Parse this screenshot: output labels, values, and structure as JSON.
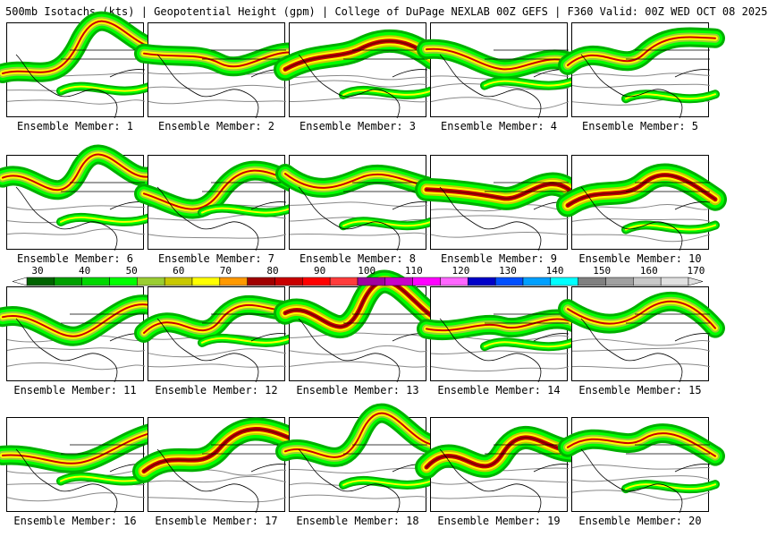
{
  "header": {
    "title": "500mb Isotachs (kts) | Geopotential Height (gpm) | College of DuPage NEXLAB   00Z GEFS | F360 Valid: 00Z WED OCT 08 2025"
  },
  "legend": {
    "ticks": [
      "30",
      "40",
      "50",
      "60",
      "70",
      "80",
      "90",
      "100",
      "110",
      "120",
      "130",
      "140",
      "150",
      "160",
      "170"
    ],
    "colors": [
      "#006400",
      "#00a000",
      "#00d800",
      "#00ff00",
      "#9acd32",
      "#c8c800",
      "#ffff00",
      "#ff9900",
      "#a00000",
      "#c80000",
      "#ff0000",
      "#ff3c3c",
      "#a000a0",
      "#c800c8",
      "#ff00ff",
      "#ff66ff",
      "#0000c8",
      "#0050ff",
      "#00a0ff",
      "#00ffff",
      "#808080",
      "#a0a0a0",
      "#c8c8c8",
      "#e0e0e0"
    ]
  },
  "panels": [
    {
      "label": "Ensemble Member: 1"
    },
    {
      "label": "Ensemble Member: 2"
    },
    {
      "label": "Ensemble Member: 3"
    },
    {
      "label": "Ensemble Member: 4"
    },
    {
      "label": "Ensemble Member: 5"
    },
    {
      "label": "Ensemble Member: 6"
    },
    {
      "label": "Ensemble Member: 7"
    },
    {
      "label": "Ensemble Member: 8"
    },
    {
      "label": "Ensemble Member: 9"
    },
    {
      "label": "Ensemble Member: 10"
    },
    {
      "label": "Ensemble Member: 11"
    },
    {
      "label": "Ensemble Member: 12"
    },
    {
      "label": "Ensemble Member: 13"
    },
    {
      "label": "Ensemble Member: 14"
    },
    {
      "label": "Ensemble Member: 15"
    },
    {
      "label": "Ensemble Member: 16"
    },
    {
      "label": "Ensemble Member: 17"
    },
    {
      "label": "Ensemble Member: 18"
    },
    {
      "label": "Ensemble Member: 19"
    },
    {
      "label": "Ensemble Member: 20"
    }
  ]
}
